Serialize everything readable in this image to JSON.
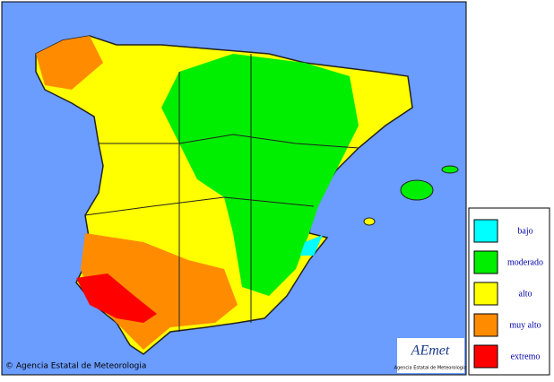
{
  "copyright": "© Agencia Estatal de Meteorologia",
  "logo": {
    "title": "AEmet",
    "subtitle": "Agencia Estatal de Meteorologia"
  },
  "legend": {
    "items": [
      {
        "label": "bajo",
        "color": "#00ffff"
      },
      {
        "label": "moderado",
        "color": "#00ee00"
      },
      {
        "label": "alto",
        "color": "#ffff00"
      },
      {
        "label": "muy alto",
        "color": "#ff8c00"
      },
      {
        "label": "extremo",
        "color": "#ff0000"
      }
    ]
  }
}
